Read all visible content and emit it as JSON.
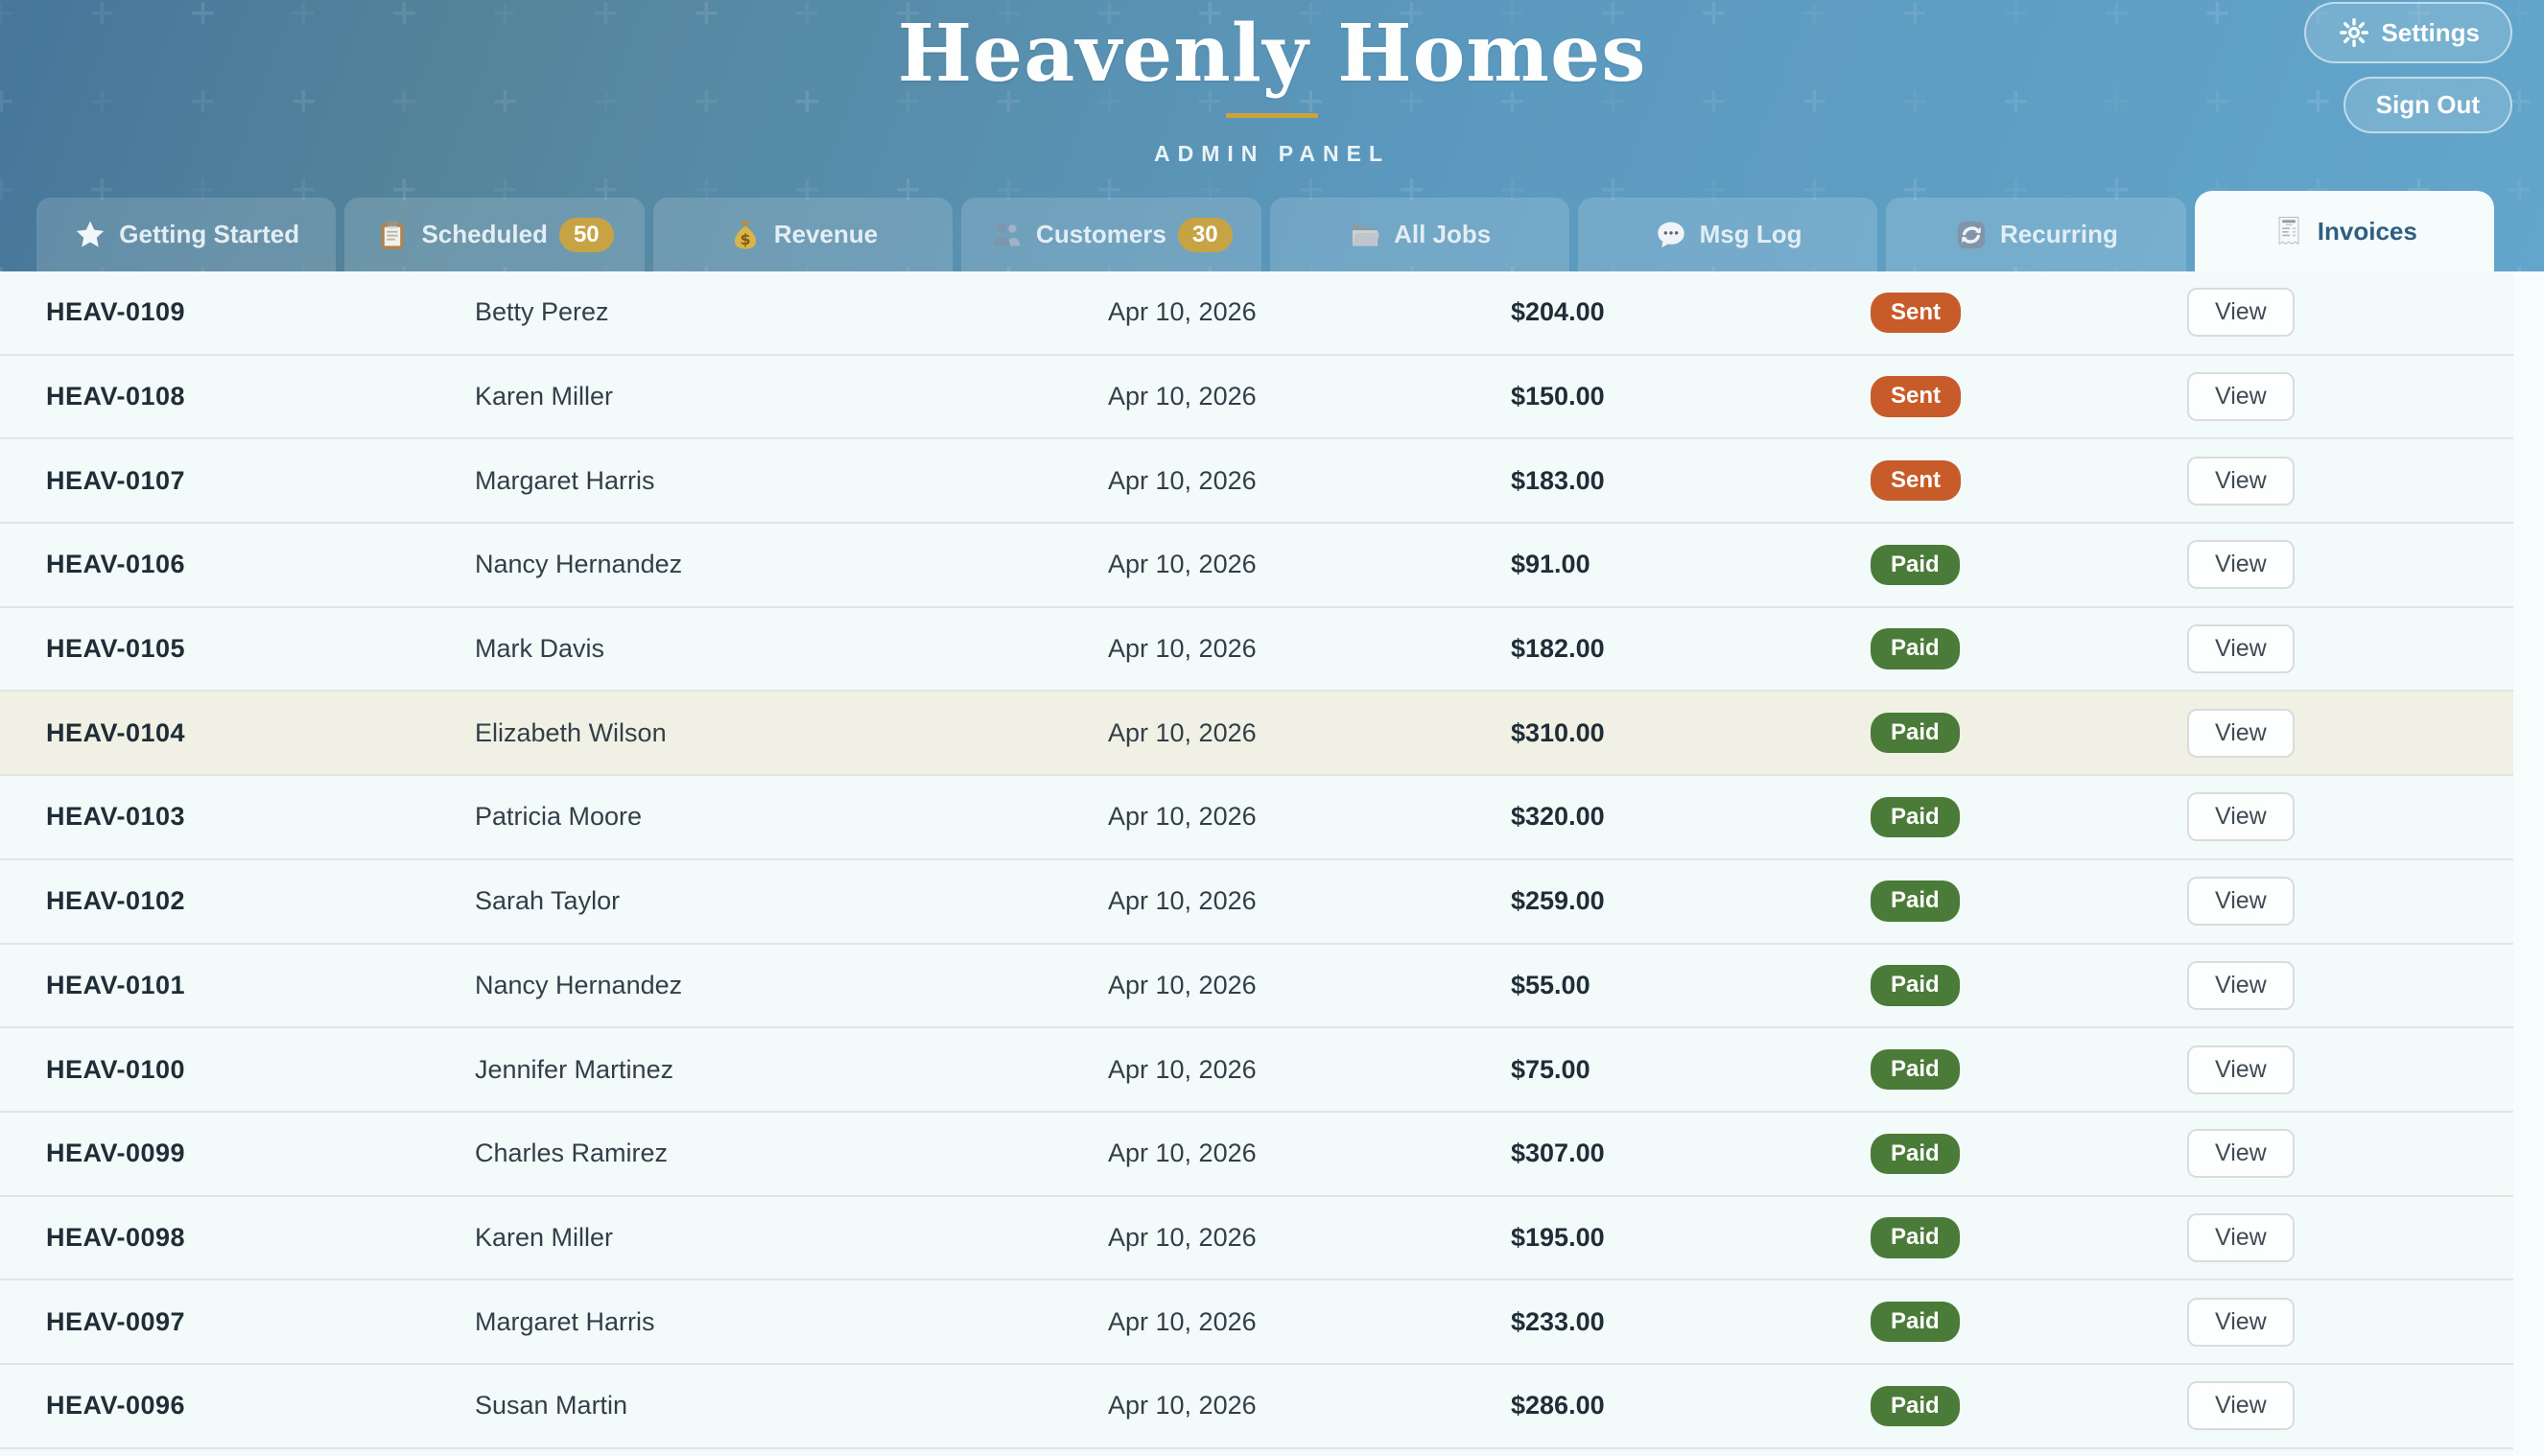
{
  "app": {
    "title": "Heavenly Homes",
    "subtitle": "ADMIN PANEL"
  },
  "header": {
    "settings_label": "Settings",
    "settings_icon": "gear-icon",
    "signout_label": "Sign Out"
  },
  "tabs": [
    {
      "label": "Getting Started",
      "icon": "star-icon",
      "badge": null,
      "active": false
    },
    {
      "label": "Scheduled",
      "icon": "clipboard-icon",
      "badge": "50",
      "active": false
    },
    {
      "label": "Revenue",
      "icon": "money-bag-icon",
      "badge": null,
      "active": false
    },
    {
      "label": "Customers",
      "icon": "people-icon",
      "badge": "30",
      "active": false
    },
    {
      "label": "All Jobs",
      "icon": "folder-icon",
      "badge": null,
      "active": false
    },
    {
      "label": "Msg Log",
      "icon": "speech-bubble-icon",
      "badge": null,
      "active": false
    },
    {
      "label": "Recurring",
      "icon": "refresh-icon",
      "badge": null,
      "active": false
    },
    {
      "label": "Invoices",
      "icon": "receipt-icon",
      "badge": null,
      "active": true
    }
  ],
  "invoices": {
    "view_label": "View",
    "rows": [
      {
        "id": "HEAV-0109",
        "customer": "Betty Perez",
        "date": "Apr 10, 2026",
        "amount": "$204.00",
        "status": "Sent",
        "highlighted": false
      },
      {
        "id": "HEAV-0108",
        "customer": "Karen Miller",
        "date": "Apr 10, 2026",
        "amount": "$150.00",
        "status": "Sent",
        "highlighted": false
      },
      {
        "id": "HEAV-0107",
        "customer": "Margaret Harris",
        "date": "Apr 10, 2026",
        "amount": "$183.00",
        "status": "Sent",
        "highlighted": false
      },
      {
        "id": "HEAV-0106",
        "customer": "Nancy Hernandez",
        "date": "Apr 10, 2026",
        "amount": "$91.00",
        "status": "Paid",
        "highlighted": false
      },
      {
        "id": "HEAV-0105",
        "customer": "Mark Davis",
        "date": "Apr 10, 2026",
        "amount": "$182.00",
        "status": "Paid",
        "highlighted": false
      },
      {
        "id": "HEAV-0104",
        "customer": "Elizabeth Wilson",
        "date": "Apr 10, 2026",
        "amount": "$310.00",
        "status": "Paid",
        "highlighted": true
      },
      {
        "id": "HEAV-0103",
        "customer": "Patricia Moore",
        "date": "Apr 10, 2026",
        "amount": "$320.00",
        "status": "Paid",
        "highlighted": false
      },
      {
        "id": "HEAV-0102",
        "customer": "Sarah Taylor",
        "date": "Apr 10, 2026",
        "amount": "$259.00",
        "status": "Paid",
        "highlighted": false
      },
      {
        "id": "HEAV-0101",
        "customer": "Nancy Hernandez",
        "date": "Apr 10, 2026",
        "amount": "$55.00",
        "status": "Paid",
        "highlighted": false
      },
      {
        "id": "HEAV-0100",
        "customer": "Jennifer Martinez",
        "date": "Apr 10, 2026",
        "amount": "$75.00",
        "status": "Paid",
        "highlighted": false
      },
      {
        "id": "HEAV-0099",
        "customer": "Charles Ramirez",
        "date": "Apr 10, 2026",
        "amount": "$307.00",
        "status": "Paid",
        "highlighted": false
      },
      {
        "id": "HEAV-0098",
        "customer": "Karen Miller",
        "date": "Apr 10, 2026",
        "amount": "$195.00",
        "status": "Paid",
        "highlighted": false
      },
      {
        "id": "HEAV-0097",
        "customer": "Margaret Harris",
        "date": "Apr 10, 2026",
        "amount": "$233.00",
        "status": "Paid",
        "highlighted": false
      },
      {
        "id": "HEAV-0096",
        "customer": "Susan Martin",
        "date": "Apr 10, 2026",
        "amount": "$286.00",
        "status": "Paid",
        "highlighted": false
      }
    ]
  },
  "colors": {
    "header_gradient_start": "#45769b",
    "header_gradient_end": "#63a5cb",
    "gold_accent": "#c9a33d",
    "status_sent": "#c75b2a",
    "status_paid": "#4b7b38",
    "active_tab_text": "#2d5f83",
    "content_background": "#f3fbfa",
    "highlight_row_background": "#f0f1e4"
  }
}
